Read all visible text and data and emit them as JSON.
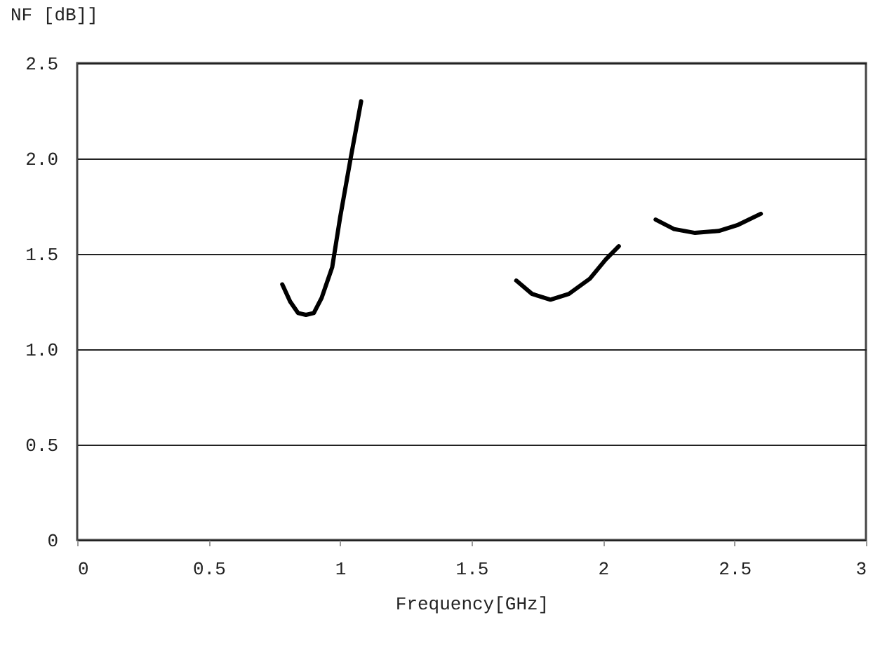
{
  "chart_data": {
    "type": "line",
    "xlabel": "Frequency[GHz]",
    "ylabel": "NF [dB]]",
    "xlim": [
      0,
      3
    ],
    "xticks": [
      0,
      0.5,
      1,
      1.5,
      2,
      2.5,
      3
    ],
    "ylim": [
      0,
      2.5
    ],
    "yticks": [
      0,
      0.5,
      {
        "value": 1,
        "label": "1.0"
      },
      1.5,
      {
        "value": 2,
        "label": "2.0"
      },
      2.5
    ],
    "grid": "y",
    "marker": "none",
    "line_style": "solid",
    "series": [
      {
        "color": "#000000",
        "x": [
          0.78,
          0.81,
          0.84,
          0.87,
          0.9,
          0.93,
          0.97,
          1.0,
          1.04,
          1.08
        ],
        "values": [
          1.34,
          1.25,
          1.19,
          1.18,
          1.19,
          1.27,
          1.43,
          1.69,
          2.0,
          2.3
        ]
      },
      {
        "color": "#000000",
        "x": [
          1.67,
          1.73,
          1.8,
          1.87,
          1.95,
          2.01,
          2.06
        ],
        "values": [
          1.36,
          1.29,
          1.26,
          1.29,
          1.37,
          1.47,
          1.54
        ]
      },
      {
        "color": "#000000",
        "x": [
          2.2,
          2.27,
          2.35,
          2.44,
          2.51,
          2.6
        ],
        "values": [
          1.68,
          1.63,
          1.61,
          1.62,
          1.65,
          1.71
        ]
      }
    ]
  }
}
